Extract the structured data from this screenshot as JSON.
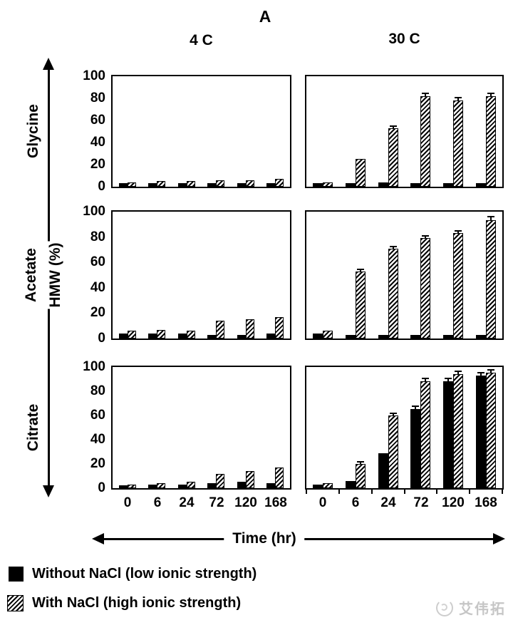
{
  "figure": {
    "panel_label": "A",
    "col_headers": [
      "4 C",
      "30 C"
    ],
    "row_labels": [
      "Glycine",
      "Acetate",
      "Citrate"
    ],
    "y_axis_label": "HMW (%)",
    "x_axis_label": "Time (hr)"
  },
  "legend": [
    {
      "swatch": "solid-black-square",
      "label": "Without NaCl (low ionic strength)"
    },
    {
      "swatch": "diagonal-hatch-square",
      "label": "With NaCl (high ionic strength)"
    }
  ],
  "watermark": {
    "text": "艾伟拓"
  },
  "colors": {
    "foreground": "#000000",
    "background": "#ffffff",
    "watermark_gray": "#c6c6c6"
  },
  "chart_data": {
    "type": "bar",
    "title": "A",
    "rows": [
      "Glycine",
      "Acetate",
      "Citrate"
    ],
    "columns": [
      "4 C",
      "30 C"
    ],
    "categories": [
      "0",
      "6",
      "24",
      "72",
      "120",
      "168"
    ],
    "xlabel": "Time (hr)",
    "ylabel": "HMW (%)",
    "ylim": [
      0,
      100
    ],
    "yticks": [
      100,
      80,
      60,
      40,
      20,
      0
    ],
    "grid": false,
    "legend_position": "bottom-left",
    "series_names": [
      "Without NaCl (low ionic strength)",
      "With NaCl (high ionic strength)"
    ],
    "panels": [
      {
        "row": "Glycine",
        "col": "4 C",
        "series": [
          {
            "name": "Without NaCl (low ionic strength)",
            "values": [
              3,
              3,
              3,
              3,
              3,
              3
            ]
          },
          {
            "name": "With NaCl (high ionic strength)",
            "values": [
              4,
              5,
              5,
              6,
              6,
              7
            ]
          }
        ]
      },
      {
        "row": "Glycine",
        "col": "30 C",
        "series": [
          {
            "name": "Without NaCl (low ionic strength)",
            "values": [
              3,
              3,
              4,
              3,
              3,
              3
            ]
          },
          {
            "name": "With NaCl (high ionic strength)",
            "values": [
              4,
              25,
              53,
              82,
              78,
              82
            ],
            "errors": [
              0,
              0,
              1,
              2,
              2,
              2
            ]
          }
        ]
      },
      {
        "row": "Acetate",
        "col": "4 C",
        "series": [
          {
            "name": "Without NaCl (low ionic strength)",
            "values": [
              4,
              4,
              4,
              3,
              3,
              4
            ]
          },
          {
            "name": "With NaCl (high ionic strength)",
            "values": [
              6,
              7,
              6,
              14,
              15,
              17
            ]
          }
        ]
      },
      {
        "row": "Acetate",
        "col": "30 C",
        "series": [
          {
            "name": "Without NaCl (low ionic strength)",
            "values": [
              4,
              3,
              3,
              3,
              3,
              3
            ]
          },
          {
            "name": "With NaCl (high ionic strength)",
            "values": [
              6,
              53,
              71,
              79,
              83,
              93
            ],
            "errors": [
              0,
              1,
              1,
              1,
              1,
              2
            ]
          }
        ]
      },
      {
        "row": "Citrate",
        "col": "4 C",
        "series": [
          {
            "name": "Without NaCl (low ionic strength)",
            "values": [
              2,
              3,
              3,
              4,
              5,
              4
            ]
          },
          {
            "name": "With NaCl (high ionic strength)",
            "values": [
              3,
              4,
              5,
              12,
              14,
              17
            ]
          }
        ]
      },
      {
        "row": "Citrate",
        "col": "30 C",
        "bottom_ticks": true,
        "series": [
          {
            "name": "Without NaCl (low ionic strength)",
            "values": [
              3,
              6,
              29,
              65,
              88,
              93
            ],
            "errors": [
              0,
              0,
              0,
              2,
              2,
              2
            ]
          },
          {
            "name": "With NaCl (high ionic strength)",
            "values": [
              4,
              20,
              60,
              88,
              94,
              95
            ],
            "errors": [
              0,
              1,
              1,
              2,
              2,
              2
            ]
          }
        ]
      }
    ]
  }
}
